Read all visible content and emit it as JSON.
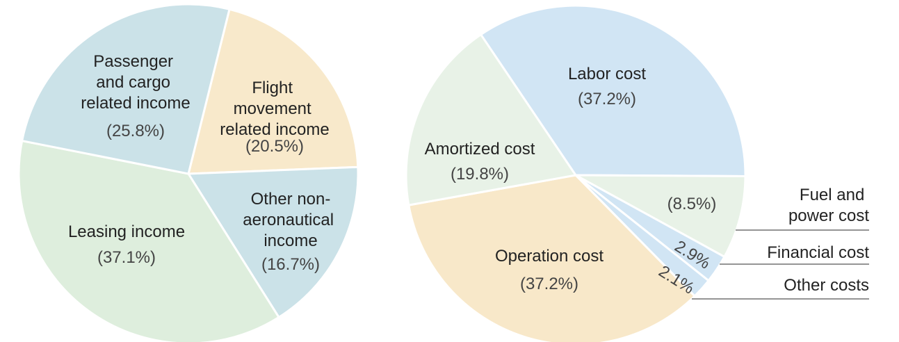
{
  "chart_data": [
    {
      "type": "pie",
      "categories": [
        "Flight movement related income",
        "Other non-aeronautical income",
        "Leasing income",
        "Passenger and cargo related income"
      ],
      "values": [
        20.5,
        16.7,
        37.1,
        25.8
      ],
      "value_labels": [
        "(20.5%)",
        "(16.7%)",
        "(37.1%)",
        "(25.8%)"
      ],
      "colors": [
        "#f8e9cb",
        "#cbe2e8",
        "#deeedd",
        "#cbe2e8"
      ]
    },
    {
      "type": "pie",
      "categories": [
        "Labor cost",
        "Fuel and power cost",
        "Financial cost",
        "Other costs",
        "Operation cost",
        "Amortized cost"
      ],
      "values": [
        37.2,
        8.5,
        2.9,
        2.1,
        37.2,
        19.8
      ],
      "value_labels": [
        "(37.2%)",
        "(8.5%)",
        "2.9%",
        "2.1%",
        "(37.2%)",
        "(19.8%)"
      ],
      "colors": [
        "#d1e5f4",
        "#e8f2e7",
        "#d1e5f4",
        "#d1e5f4",
        "#f8e8c9",
        "#e8f2e7"
      ]
    }
  ]
}
